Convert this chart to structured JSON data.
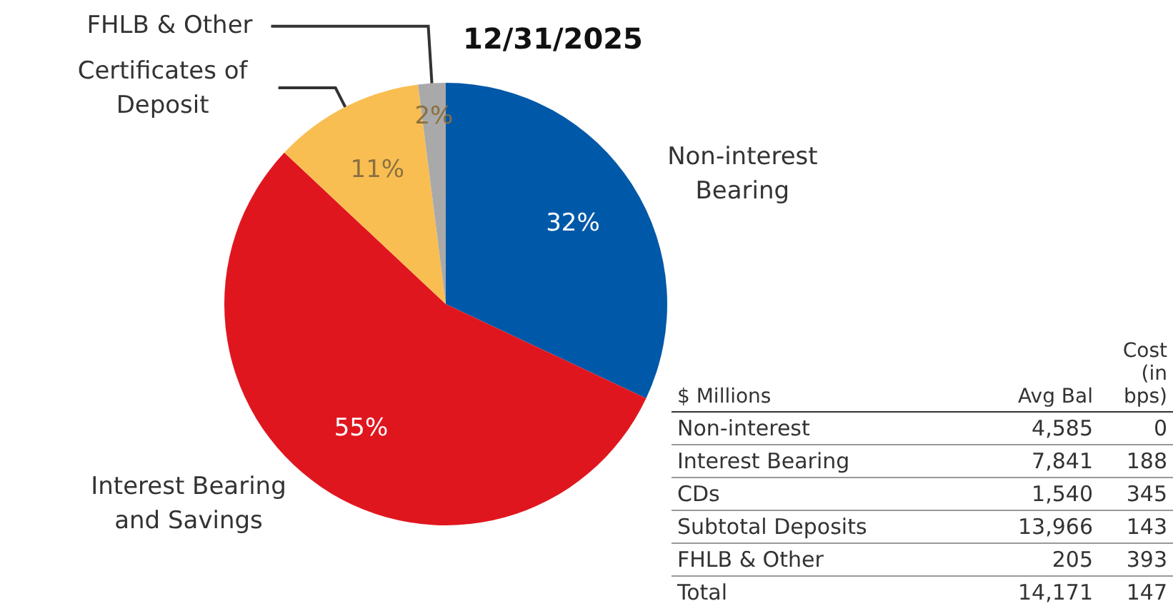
{
  "chart_data": [
    {
      "type": "pie",
      "title": "12/31/2025",
      "categories": [
        "Non-interest Bearing",
        "Interest Bearing and Savings",
        "Certificates of Deposit",
        "FHLB & Other"
      ],
      "values": [
        32,
        55,
        11,
        2
      ],
      "value_labels": [
        "32%",
        "55%",
        "11%",
        "2%"
      ],
      "colors": [
        "#0058a8",
        "#e0161f",
        "#f9be52",
        "#a9a9a9"
      ]
    },
    {
      "type": "other",
      "title": "$ Millions",
      "categories": [
        "Non-interest",
        "Interest Bearing",
        "CDs",
        "Subtotal Deposits",
        "FHLB & Other",
        "Total"
      ],
      "data_labels": true,
      "series": [
        {
          "name": "Avg Bal",
          "values": [
            4585,
            7841,
            1540,
            13966,
            205,
            14171
          ],
          "value_labels": [
            "4,585",
            "7,841",
            "1,540",
            "13,966",
            "205",
            "14,171"
          ]
        },
        {
          "name": "Cost (in bps)",
          "values": [
            0,
            188,
            345,
            143,
            393,
            147
          ]
        }
      ]
    }
  ]
}
